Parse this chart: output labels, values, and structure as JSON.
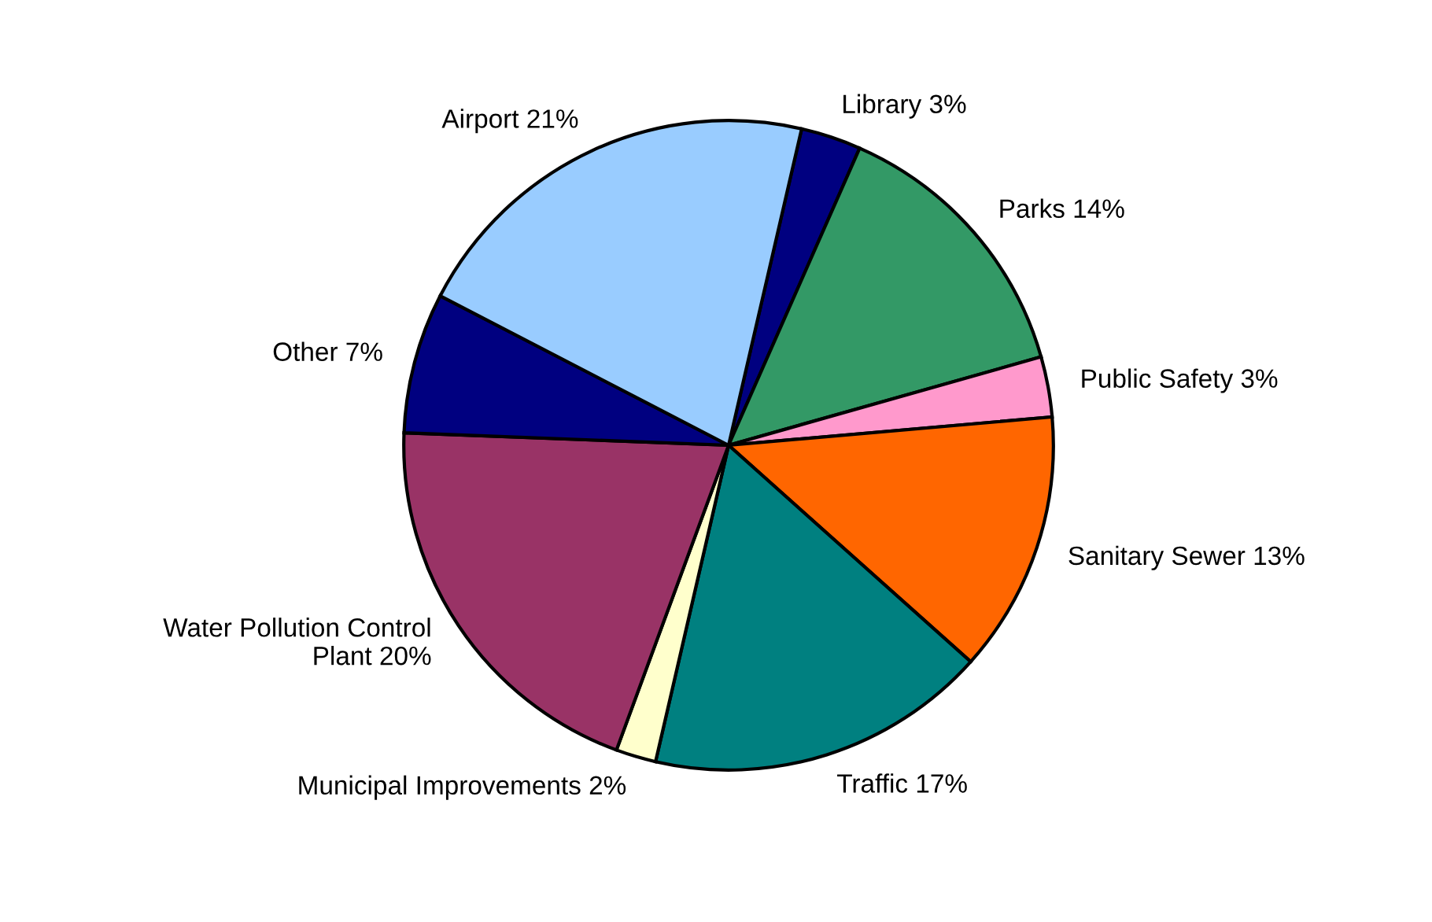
{
  "chart_data": {
    "type": "pie",
    "categories": [
      "Library",
      "Parks",
      "Public Safety",
      "Sanitary Sewer",
      "Traffic",
      "Municipal Improvements",
      "Water Pollution Control\nPlant",
      "Other",
      "Airport"
    ],
    "values": [
      3,
      14,
      3,
      13,
      17,
      2,
      20,
      7,
      21
    ],
    "value_labels": [
      "3%",
      "14%",
      "3%",
      "13%",
      "17%",
      "2%",
      "20%",
      "7%",
      "21%"
    ],
    "colors": [
      "#000080",
      "#339966",
      "#ff99cc",
      "#ff6600",
      "#008080",
      "#ffffcc",
      "#993366",
      "#000080",
      "#99ccff"
    ],
    "legend": false
  }
}
